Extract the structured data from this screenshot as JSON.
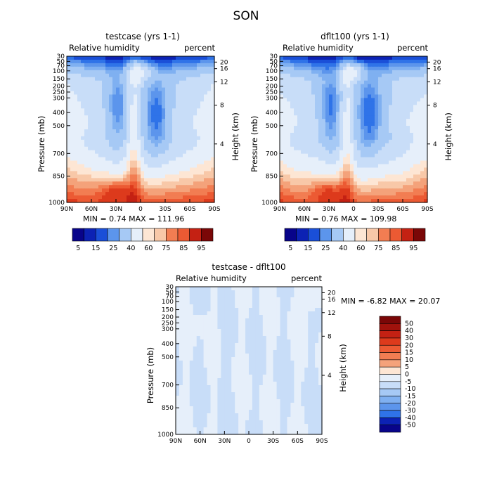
{
  "page_title": "SON",
  "colors": {
    "rh_levels": [
      "#08048a",
      "#0c22b4",
      "#1a4fd8",
      "#2f73e8",
      "#5c95ec",
      "#7fb0f1",
      "#a6c9f5",
      "#c8ddf8",
      "#e6effa",
      "#fde6d4",
      "#f8c8a8",
      "#f4a27a",
      "#f27d52",
      "#ec5a33",
      "#dd3a1c",
      "#c42113",
      "#a0120c",
      "#7a0707"
    ],
    "diff_levels": [
      "#08048a",
      "#0c22b4",
      "#1a4fd8",
      "#2f73e8",
      "#5c95ec",
      "#7fb0f1",
      "#a6c9f5",
      "#c8ddf8",
      "#e6effa",
      "#fde6d4",
      "#f8c8a8",
      "#f4a27a",
      "#f27d52",
      "#ec5a33",
      "#dd3a1c",
      "#c42113",
      "#a0120c",
      "#7a0707"
    ]
  },
  "chart_data": [
    {
      "type": "heatmap",
      "panel": "top-left",
      "title": "testcase (yrs 1-1)",
      "left_label": "Relative humidity",
      "right_label": "percent",
      "xlabel": "",
      "ylabel": "Pressure (mb)",
      "y2label": "Height (km)",
      "x_ticks": [
        "90N",
        "60N",
        "30N",
        "0",
        "30S",
        "60S",
        "90S"
      ],
      "x_range": [
        90,
        -90
      ],
      "y_ticks": [
        "30",
        "50",
        "70",
        "100",
        "150",
        "200",
        "250",
        "300",
        "400",
        "500",
        "700",
        "850",
        "1000"
      ],
      "y2_ticks": [
        "20",
        "16",
        "12",
        "8",
        "4"
      ],
      "min": "0.74",
      "max": "111.96",
      "stats_text": "MIN =   0.74   MAX = 111.96",
      "colorbar_labels": [
        "5",
        "15",
        "25",
        "40",
        "60",
        "75",
        "85",
        "95"
      ],
      "scale": "rh"
    },
    {
      "type": "heatmap",
      "panel": "top-right",
      "title": "dflt100 (yrs 1-1)",
      "left_label": "Relative humidity",
      "right_label": "percent",
      "xlabel": "",
      "ylabel": "Pressure (mb)",
      "y2label": "Height (km)",
      "x_ticks": [
        "90N",
        "60N",
        "30N",
        "0",
        "30S",
        "60S",
        "90S"
      ],
      "x_range": [
        90,
        -90
      ],
      "y_ticks": [
        "30",
        "50",
        "70",
        "100",
        "150",
        "200",
        "250",
        "300",
        "400",
        "500",
        "700",
        "850",
        "1000"
      ],
      "y2_ticks": [
        "20",
        "16",
        "12",
        "8",
        "4"
      ],
      "min": "0.76",
      "max": "109.98",
      "stats_text": "MIN =   0.76   MAX = 109.98",
      "colorbar_labels": [
        "5",
        "15",
        "25",
        "40",
        "60",
        "75",
        "85",
        "95"
      ],
      "scale": "rh"
    },
    {
      "type": "heatmap",
      "panel": "bottom",
      "title": "testcase - dflt100",
      "left_label": "Relative humidity",
      "right_label": "percent",
      "xlabel": "",
      "ylabel": "Pressure (mb)",
      "y2label": "Height (km)",
      "x_ticks": [
        "90N",
        "60N",
        "30N",
        "0",
        "30S",
        "60S",
        "90S"
      ],
      "x_range": [
        90,
        -90
      ],
      "y_ticks": [
        "30",
        "50",
        "70",
        "100",
        "150",
        "200",
        "250",
        "300",
        "400",
        "500",
        "700",
        "850",
        "1000"
      ],
      "y2_ticks": [
        "20",
        "16",
        "12",
        "8",
        "4"
      ],
      "min": "-6.82",
      "max": "20.07",
      "stats_text": "MIN =   -6.82   MAX =  20.07",
      "colorbar_labels": [
        "50",
        "40",
        "30",
        "20",
        "15",
        "10",
        "5",
        "0",
        "-5",
        "-10",
        "-15",
        "-20",
        "-30",
        "-40",
        "-50"
      ],
      "scale": "diff"
    }
  ]
}
